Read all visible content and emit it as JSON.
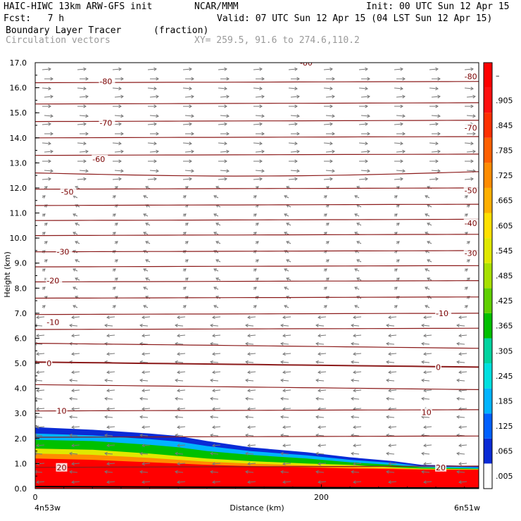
{
  "header": {
    "title_left": "HAIC-HIWC 13km ARW-GFS init",
    "title_org": "NCAR/MMM",
    "init": "Init: 00 UTC Sun 12 Apr 15",
    "fcst": "Fcst:   7 h",
    "valid": "Valid: 07 UTC Sun 12 Apr 15 (04 LST Sun 12 Apr 15)",
    "field": "Boundary Layer Tracer",
    "units": "(fraction)",
    "vectors": "Circulation vectors",
    "xy": "XY= 259.5, 91.6 to 274.6,110.2"
  },
  "chart_data": {
    "type": "area",
    "title": "Boundary Layer Tracer",
    "xlabel": "Distance (km)",
    "ylabel": "Height (km)",
    "x_tick_labels": [
      "0",
      "200"
    ],
    "x_ticks": [
      0,
      200
    ],
    "x_range": [
      0,
      310
    ],
    "x_end_labels": {
      "left": "4n53w",
      "right": "6n51w"
    },
    "y_ticks": [
      0.0,
      1.0,
      2.0,
      3.0,
      4.0,
      5.0,
      6.0,
      7.0,
      8.0,
      9.0,
      10.0,
      11.0,
      12.0,
      13.0,
      14.0,
      15.0,
      16.0,
      17.0
    ],
    "y_tick_labels": [
      "0.0",
      "1.0",
      "2.0",
      "3.0",
      "4.0",
      "5.0",
      "6.0",
      "7.0",
      "8.0",
      "9.0",
      "10.0",
      "11.0",
      "12.0",
      "13.0",
      "14.0",
      "15.0",
      "16.0",
      "17.0"
    ],
    "ylim": [
      0,
      17
    ],
    "colorbar": {
      "labels": [
        ".005",
        ".065",
        ".125",
        ".185",
        ".245",
        ".305",
        ".365",
        ".425",
        ".485",
        ".545",
        ".605",
        ".665",
        ".725",
        ".785",
        ".845",
        ".905",
        "–"
      ],
      "colors": [
        "#ffffff",
        "#0a2bd6",
        "#0060ff",
        "#00b4ff",
        "#00e0e0",
        "#00d4a0",
        "#00c000",
        "#60d000",
        "#a8e000",
        "#e0e800",
        "#ffe000",
        "#ffb000",
        "#ff8c00",
        "#ff6000",
        "#ff3000",
        "#ff1010",
        "#ff0000"
      ]
    },
    "tracer_top_km": {
      "x": [
        0,
        40,
        80,
        100,
        120,
        150,
        190,
        220,
        250,
        270,
        310
      ],
      "outer": [
        2.45,
        2.35,
        2.2,
        2.1,
        1.9,
        1.65,
        1.45,
        1.25,
        1.1,
        0.95,
        0.9
      ],
      "green": [
        1.95,
        1.9,
        1.75,
        1.65,
        1.5,
        1.35,
        1.2,
        1.05,
        0.95,
        0.85,
        0.8
      ],
      "yellow": [
        1.6,
        1.55,
        1.4,
        1.3,
        1.2,
        1.1,
        1.0,
        0.95,
        0.85,
        0.8,
        0.78
      ],
      "red": [
        1.2,
        1.15,
        1.05,
        1.0,
        0.95,
        0.9,
        0.85,
        0.8,
        0.78,
        0.76,
        0.75
      ]
    },
    "isotherm_labels": [
      {
        "value": "-80",
        "x": 45,
        "y": 16.25
      },
      {
        "value": "-80",
        "x": 300,
        "y": 16.45
      },
      {
        "value": "-80",
        "x": 185,
        "y": 17.0
      },
      {
        "value": "-70",
        "x": 45,
        "y": 14.6
      },
      {
        "value": "-70",
        "x": 300,
        "y": 14.4
      },
      {
        "value": "-60",
        "x": 40,
        "y": 13.15
      },
      {
        "value": "-50",
        "x": 18,
        "y": 11.85
      },
      {
        "value": "-50",
        "x": 300,
        "y": 11.9
      },
      {
        "value": "-40",
        "x": 300,
        "y": 10.6
      },
      {
        "value": "-30",
        "x": 15,
        "y": 9.45
      },
      {
        "value": "-30",
        "x": 300,
        "y": 9.4
      },
      {
        "value": "-20",
        "x": 8,
        "y": 8.3
      },
      {
        "value": "-10",
        "x": 8,
        "y": 6.65
      },
      {
        "value": "-10",
        "x": 280,
        "y": 7.0
      },
      {
        "value": "0",
        "x": 8,
        "y": 5.0
      },
      {
        "value": "0",
        "x": 280,
        "y": 4.85
      },
      {
        "value": "10",
        "x": 15,
        "y": 3.1
      },
      {
        "value": "10",
        "x": 270,
        "y": 3.05
      },
      {
        "value": "20",
        "x": 15,
        "y": 0.85
      },
      {
        "value": "20",
        "x": 280,
        "y": 0.85
      }
    ],
    "isotherm_heights_km": [
      16.2,
      15.35,
      14.65,
      14.0,
      13.3,
      12.6,
      11.95,
      11.3,
      10.7,
      10.1,
      9.45,
      8.85,
      8.25,
      7.6,
      6.95,
      6.35,
      5.8,
      5.05,
      4.15,
      3.1,
      2.05,
      0.85
    ],
    "grid": false,
    "legend": "colorbar-right"
  }
}
